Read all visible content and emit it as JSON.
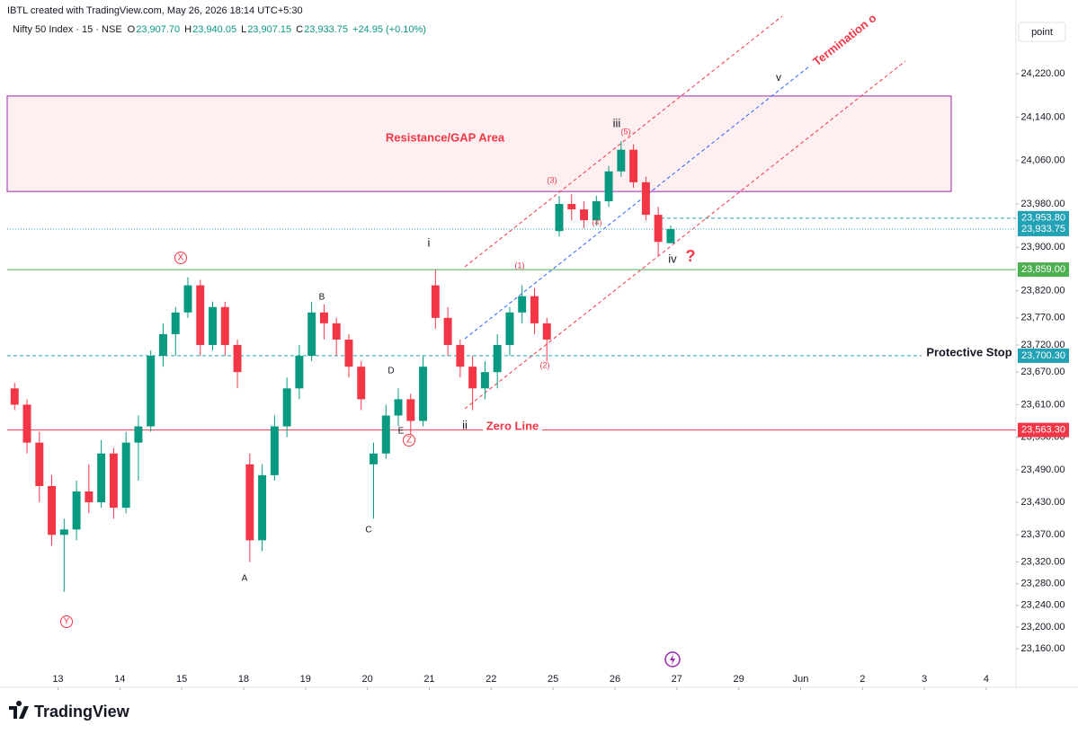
{
  "chart_data": {
    "type": "candlestick",
    "source": "IBTL created with TradingView.com, May 26, 2026 18:14 UTC+5:30",
    "title": "Nifty 50 Index · 15 · NSE",
    "legend_values": [
      {
        "label": "O",
        "value": "23,907.70"
      },
      {
        "label": "H",
        "value": "23,940.05"
      },
      {
        "label": "L",
        "value": "23,907.15"
      },
      {
        "label": "C",
        "value": "23,933.75"
      }
    ],
    "change": "+24.95 (+0.10%)",
    "scale_mode": "point",
    "brand": "TradingView",
    "up_color": "#089981",
    "down_color": "#f23645",
    "xlim": [
      -0.5,
      407
    ],
    "ylim": [
      23089,
      24356
    ],
    "xticks": [
      {
        "value": 20,
        "label": "13"
      },
      {
        "value": 45,
        "label": "14"
      },
      {
        "value": 70,
        "label": "15"
      },
      {
        "value": 95,
        "label": "18"
      },
      {
        "value": 120,
        "label": "19"
      },
      {
        "value": 145,
        "label": "20"
      },
      {
        "value": 170,
        "label": "21"
      },
      {
        "value": 195,
        "label": "22"
      },
      {
        "value": 220,
        "label": "25"
      },
      {
        "value": 245,
        "label": "26"
      },
      {
        "value": 270,
        "label": "27"
      },
      {
        "value": 295,
        "label": "29"
      },
      {
        "value": 320,
        "label": "Jun"
      },
      {
        "value": 345,
        "label": "2"
      },
      {
        "value": 370,
        "label": "3"
      },
      {
        "value": 395,
        "label": "4"
      }
    ],
    "yticks": [
      {
        "value": 24220,
        "label": "24,220.00"
      },
      {
        "value": 24140,
        "label": "24,140.00"
      },
      {
        "value": 24060,
        "label": "24,060.00"
      },
      {
        "value": 23980,
        "label": "23,980.00"
      },
      {
        "value": 23900,
        "label": "23,900.00"
      },
      {
        "value": 23820,
        "label": "23,820.00"
      },
      {
        "value": 23770,
        "label": "23,770.00"
      },
      {
        "value": 23720,
        "label": "23,720.00"
      },
      {
        "value": 23670,
        "label": "23,670.00"
      },
      {
        "value": 23610,
        "label": "23,610.00"
      },
      {
        "value": 23550,
        "label": "23,550.00"
      },
      {
        "value": 23490,
        "label": "23,490.00"
      },
      {
        "value": 23430,
        "label": "23,430.00"
      },
      {
        "value": 23370,
        "label": "23,370.00"
      },
      {
        "value": 23320,
        "label": "23,320.00"
      },
      {
        "value": 23280,
        "label": "23,280.00"
      },
      {
        "value": 23240,
        "label": "23,240.00"
      },
      {
        "value": 23200,
        "label": "23,200.00"
      },
      {
        "value": 23160,
        "label": "23,160.00"
      }
    ],
    "x": [
      2.5,
      7.5,
      12.5,
      17.5,
      22.5,
      27.5,
      32.5,
      37.5,
      42.5,
      47.5,
      52.5,
      57.5,
      62.5,
      67.5,
      72.5,
      77.5,
      82.5,
      87.5,
      92.5,
      97.5,
      102.5,
      107.5,
      112.5,
      117.5,
      122.5,
      127.5,
      132.5,
      137.5,
      142.5,
      147.5,
      152.5,
      157.5,
      162.5,
      167.5,
      172.5,
      177.5,
      182.5,
      187.5,
      192.5,
      197.5,
      202.5,
      207.5,
      212.5,
      217.5,
      222.5,
      227.5,
      232.5,
      237.5,
      242.5,
      247.5,
      252.5,
      257.5,
      262.5,
      267.5
    ],
    "ohlc": [
      [
        23640,
        23650,
        23600,
        23610
      ],
      [
        23610,
        23620,
        23520,
        23540
      ],
      [
        23540,
        23560,
        23430,
        23460
      ],
      [
        23460,
        23480,
        23350,
        23370
      ],
      [
        23370,
        23400,
        23265,
        23380
      ],
      [
        23380,
        23470,
        23360,
        23450
      ],
      [
        23450,
        23500,
        23410,
        23430
      ],
      [
        23430,
        23545,
        23420,
        23520
      ],
      [
        23520,
        23530,
        23400,
        23420
      ],
      [
        23420,
        23560,
        23410,
        23540
      ],
      [
        23540,
        23590,
        23470,
        23570
      ],
      [
        23570,
        23710,
        23560,
        23700
      ],
      [
        23700,
        23760,
        23680,
        23740
      ],
      [
        23740,
        23790,
        23700,
        23780
      ],
      [
        23780,
        23845,
        23770,
        23830
      ],
      [
        23830,
        23840,
        23700,
        23720
      ],
      [
        23720,
        23800,
        23710,
        23790
      ],
      [
        23790,
        23800,
        23700,
        23720
      ],
      [
        23720,
        23730,
        23640,
        23670
      ],
      [
        23500,
        23520,
        23320,
        23360
      ],
      [
        23360,
        23500,
        23340,
        23480
      ],
      [
        23480,
        23590,
        23470,
        23570
      ],
      [
        23570,
        23660,
        23550,
        23640
      ],
      [
        23640,
        23720,
        23620,
        23700
      ],
      [
        23700,
        23800,
        23690,
        23780
      ],
      [
        23780,
        23795,
        23730,
        23760
      ],
      [
        23760,
        23770,
        23700,
        23730
      ],
      [
        23730,
        23740,
        23660,
        23680
      ],
      [
        23680,
        23690,
        23600,
        23620
      ],
      [
        23500,
        23540,
        23400,
        23520
      ],
      [
        23520,
        23610,
        23510,
        23590
      ],
      [
        23590,
        23640,
        23570,
        23620
      ],
      [
        23620,
        23630,
        23555,
        23580
      ],
      [
        23580,
        23700,
        23570,
        23680
      ],
      [
        23830,
        23859,
        23750,
        23770
      ],
      [
        23770,
        23790,
        23700,
        23720
      ],
      [
        23720,
        23730,
        23660,
        23680
      ],
      [
        23680,
        23700,
        23600,
        23640
      ],
      [
        23640,
        23690,
        23620,
        23670
      ],
      [
        23670,
        23740,
        23640,
        23720
      ],
      [
        23720,
        23790,
        23700,
        23780
      ],
      [
        23780,
        23830,
        23760,
        23810
      ],
      [
        23810,
        23825,
        23740,
        23760
      ],
      [
        23760,
        23770,
        23690,
        23730
      ],
      [
        23930,
        23995,
        23920,
        23980
      ],
      [
        23980,
        23998,
        23950,
        23970
      ],
      [
        23970,
        23985,
        23935,
        23950
      ],
      [
        23950,
        23995,
        23940,
        23985
      ],
      [
        23985,
        24050,
        23975,
        24040
      ],
      [
        24040,
        24096,
        24030,
        24080
      ],
      [
        24080,
        24090,
        24010,
        24020
      ],
      [
        24020,
        24030,
        23950,
        23960
      ],
      [
        23960,
        23975,
        23885,
        23910
      ],
      [
        23907.7,
        23940.05,
        23907.15,
        23933.75
      ]
    ],
    "zones": [
      {
        "label": "Resistance/GAP Area",
        "low": 24003,
        "high": 24179,
        "color": "#9c27b0"
      }
    ],
    "levels": [
      {
        "value": 23953.8,
        "label": "23,953.80",
        "color": "#22a2b4",
        "style": "dashed"
      },
      {
        "value": 23933.75,
        "label": "23,933.75",
        "color": "#22a2b4",
        "style": "dotted"
      },
      {
        "value": 23859,
        "label": "23,859.00",
        "color": "#4caf50",
        "style": "solid"
      },
      {
        "value": 23700.3,
        "label": "23,700.30",
        "color": "#22a2b4",
        "style": "dashed"
      },
      {
        "value": 23563.3,
        "label": "23,563.30",
        "color": "#f23645",
        "style": "solid"
      }
    ],
    "annotations": [
      "X",
      "Y",
      "Z",
      "A",
      "B",
      "C",
      "D",
      "E",
      "i",
      "ii",
      "iii",
      "iv",
      "v",
      "(1)",
      "(2)",
      "(3)",
      "(4)",
      "(5)",
      "?",
      "Zero Line",
      "Termination o",
      "Protective Stop"
    ]
  }
}
